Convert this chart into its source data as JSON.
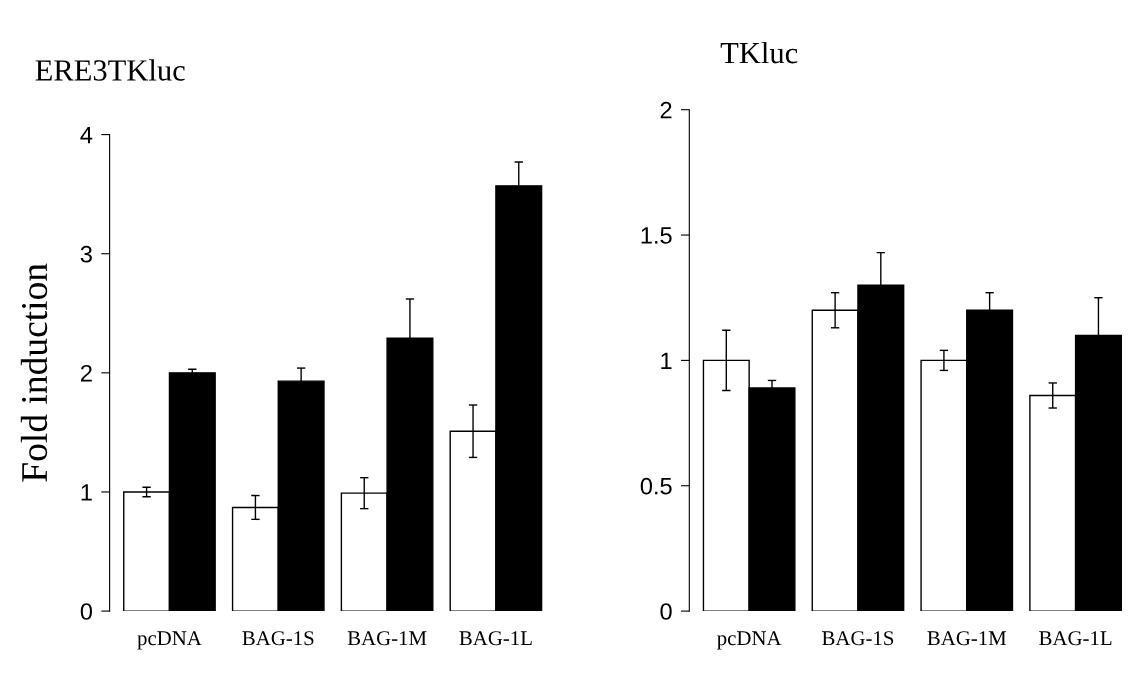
{
  "chart_data": [
    {
      "type": "bar",
      "title": "ERE3TKluc",
      "ylabel": "Fold induction",
      "categories": [
        "pcDNA",
        "BAG-1S",
        "BAG-1M",
        "BAG-1L"
      ],
      "series": [
        {
          "color": "#ffffff",
          "values": [
            1.0,
            0.87,
            0.99,
            1.51
          ],
          "errors": [
            0.04,
            0.1,
            0.13,
            0.22
          ]
        },
        {
          "color": "#000000",
          "values": [
            2.0,
            1.93,
            2.29,
            3.57
          ],
          "errors": [
            0.03,
            0.11,
            0.33,
            0.2
          ]
        }
      ],
      "ylim": [
        0,
        4
      ],
      "yticks": [
        0,
        1,
        2,
        3,
        4
      ]
    },
    {
      "type": "bar",
      "title": "TKluc",
      "categories": [
        "pcDNA",
        "BAG-1S",
        "BAG-1M",
        "BAG-1L"
      ],
      "series": [
        {
          "color": "#ffffff",
          "values": [
            1.0,
            1.2,
            1.0,
            0.86
          ],
          "errors": [
            0.12,
            0.07,
            0.04,
            0.05
          ]
        },
        {
          "color": "#000000",
          "values": [
            0.89,
            1.3,
            1.2,
            1.1
          ],
          "errors": [
            0.03,
            0.13,
            0.07,
            0.15
          ]
        }
      ],
      "ylim": [
        0,
        2
      ],
      "yticks": [
        0,
        0.5,
        1,
        1.5,
        2
      ]
    }
  ]
}
